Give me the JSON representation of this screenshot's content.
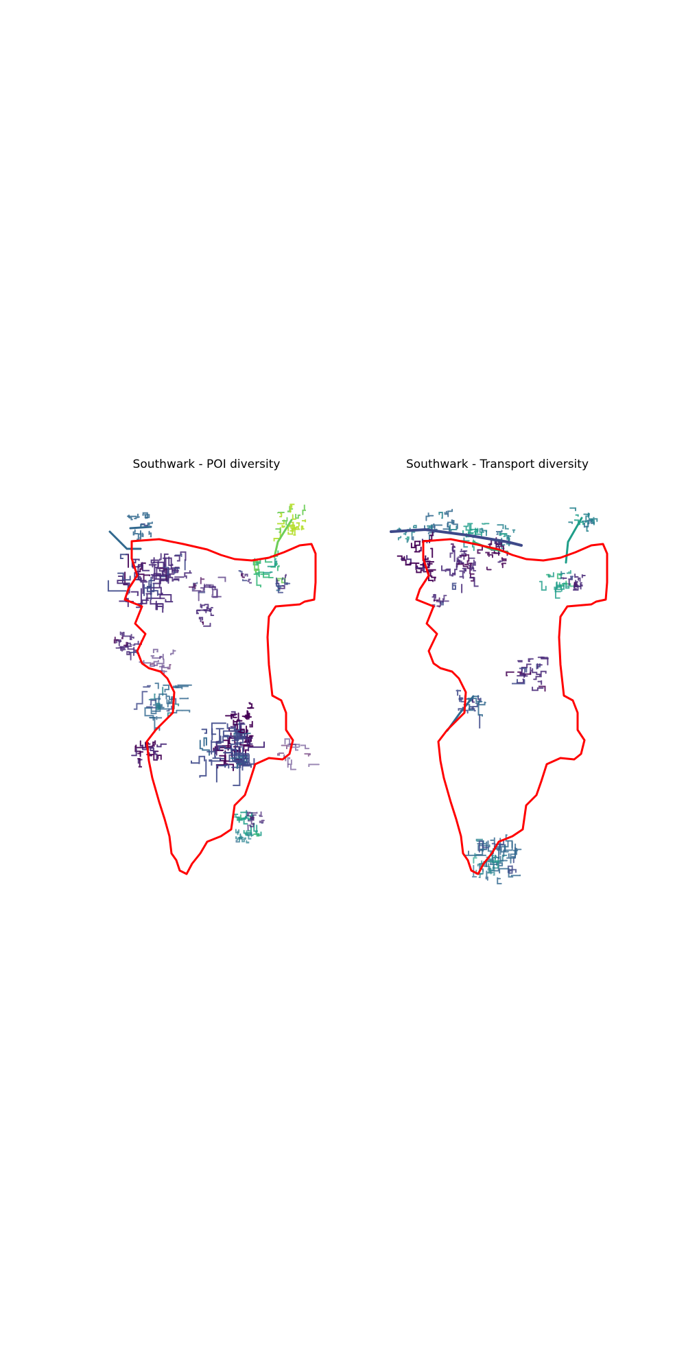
{
  "figure": {
    "panels": [
      {
        "id": "poi",
        "title": "Southwark - POI diversity",
        "boundary_color": "#ff0000",
        "colormap": "viridis"
      },
      {
        "id": "transport",
        "title": "Southwark - Transport diversity",
        "boundary_color": "#ff0000",
        "colormap": "viridis"
      }
    ]
  }
}
